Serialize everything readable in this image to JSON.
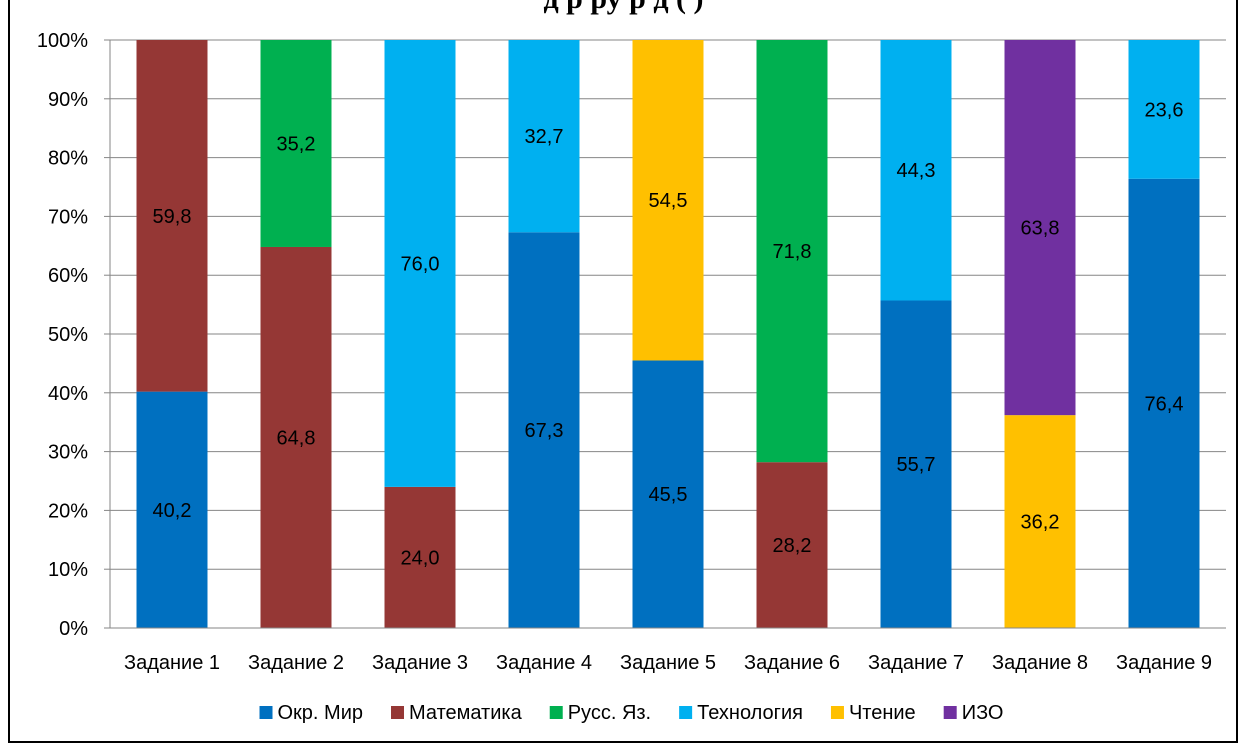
{
  "chart_data": {
    "type": "bar",
    "stacked": true,
    "percent_stacked": true,
    "title": "ДЗ верные ответы по предметам (в % от участников)",
    "title_visible_fragment": "д  р                   ру           р д      (      )",
    "xlabel": "",
    "ylabel": "",
    "ylim": [
      0,
      100
    ],
    "y_ticks": [
      "0%",
      "10%",
      "20%",
      "30%",
      "40%",
      "50%",
      "60%",
      "70%",
      "80%",
      "90%",
      "100%"
    ],
    "grid": true,
    "legend_position": "bottom",
    "categories": [
      "Задание 1",
      "Задание 2",
      "Задание 3",
      "Задание 4",
      "Задание 5",
      "Задание 6",
      "Задание 7",
      "Задание 8",
      "Задание 9"
    ],
    "series": [
      {
        "name": "Окр. Мир",
        "color": "#0070C0",
        "values": [
          40.2,
          null,
          null,
          67.3,
          45.5,
          null,
          55.7,
          null,
          76.4
        ],
        "labels": [
          "40,2",
          "",
          "",
          "67,3",
          "45,5",
          "",
          "55,7",
          "",
          "76,4"
        ]
      },
      {
        "name": "Математика",
        "color": "#953735",
        "values": [
          59.8,
          64.8,
          24.0,
          null,
          null,
          28.2,
          null,
          null,
          null
        ],
        "labels": [
          "59,8",
          "64,8",
          "24,0",
          "",
          "",
          "28,2",
          "",
          "",
          ""
        ]
      },
      {
        "name": "Русс. Яз.",
        "color": "#00B050",
        "values": [
          null,
          35.2,
          null,
          null,
          null,
          71.8,
          null,
          null,
          null
        ],
        "labels": [
          "",
          "35,2",
          "",
          "",
          "",
          "71,8",
          "",
          "",
          ""
        ]
      },
      {
        "name": "Технология",
        "color": "#00B0F0",
        "values": [
          null,
          null,
          76.0,
          32.7,
          null,
          null,
          44.3,
          null,
          23.6
        ],
        "labels": [
          "",
          "",
          "76,0",
          "32,7",
          "",
          "",
          "44,3",
          "",
          "23,6"
        ]
      },
      {
        "name": "Чтение",
        "color": "#FFC000",
        "values": [
          null,
          null,
          null,
          null,
          54.5,
          null,
          null,
          36.2,
          null
        ],
        "labels": [
          "",
          "",
          "",
          "",
          "54,5",
          "",
          "",
          "36,2",
          ""
        ]
      },
      {
        "name": "ИЗО",
        "color": "#7030A0",
        "values": [
          null,
          null,
          null,
          null,
          null,
          null,
          null,
          63.8,
          null
        ],
        "labels": [
          "",
          "",
          "",
          "",
          "",
          "",
          "",
          "63,8",
          ""
        ]
      }
    ]
  }
}
